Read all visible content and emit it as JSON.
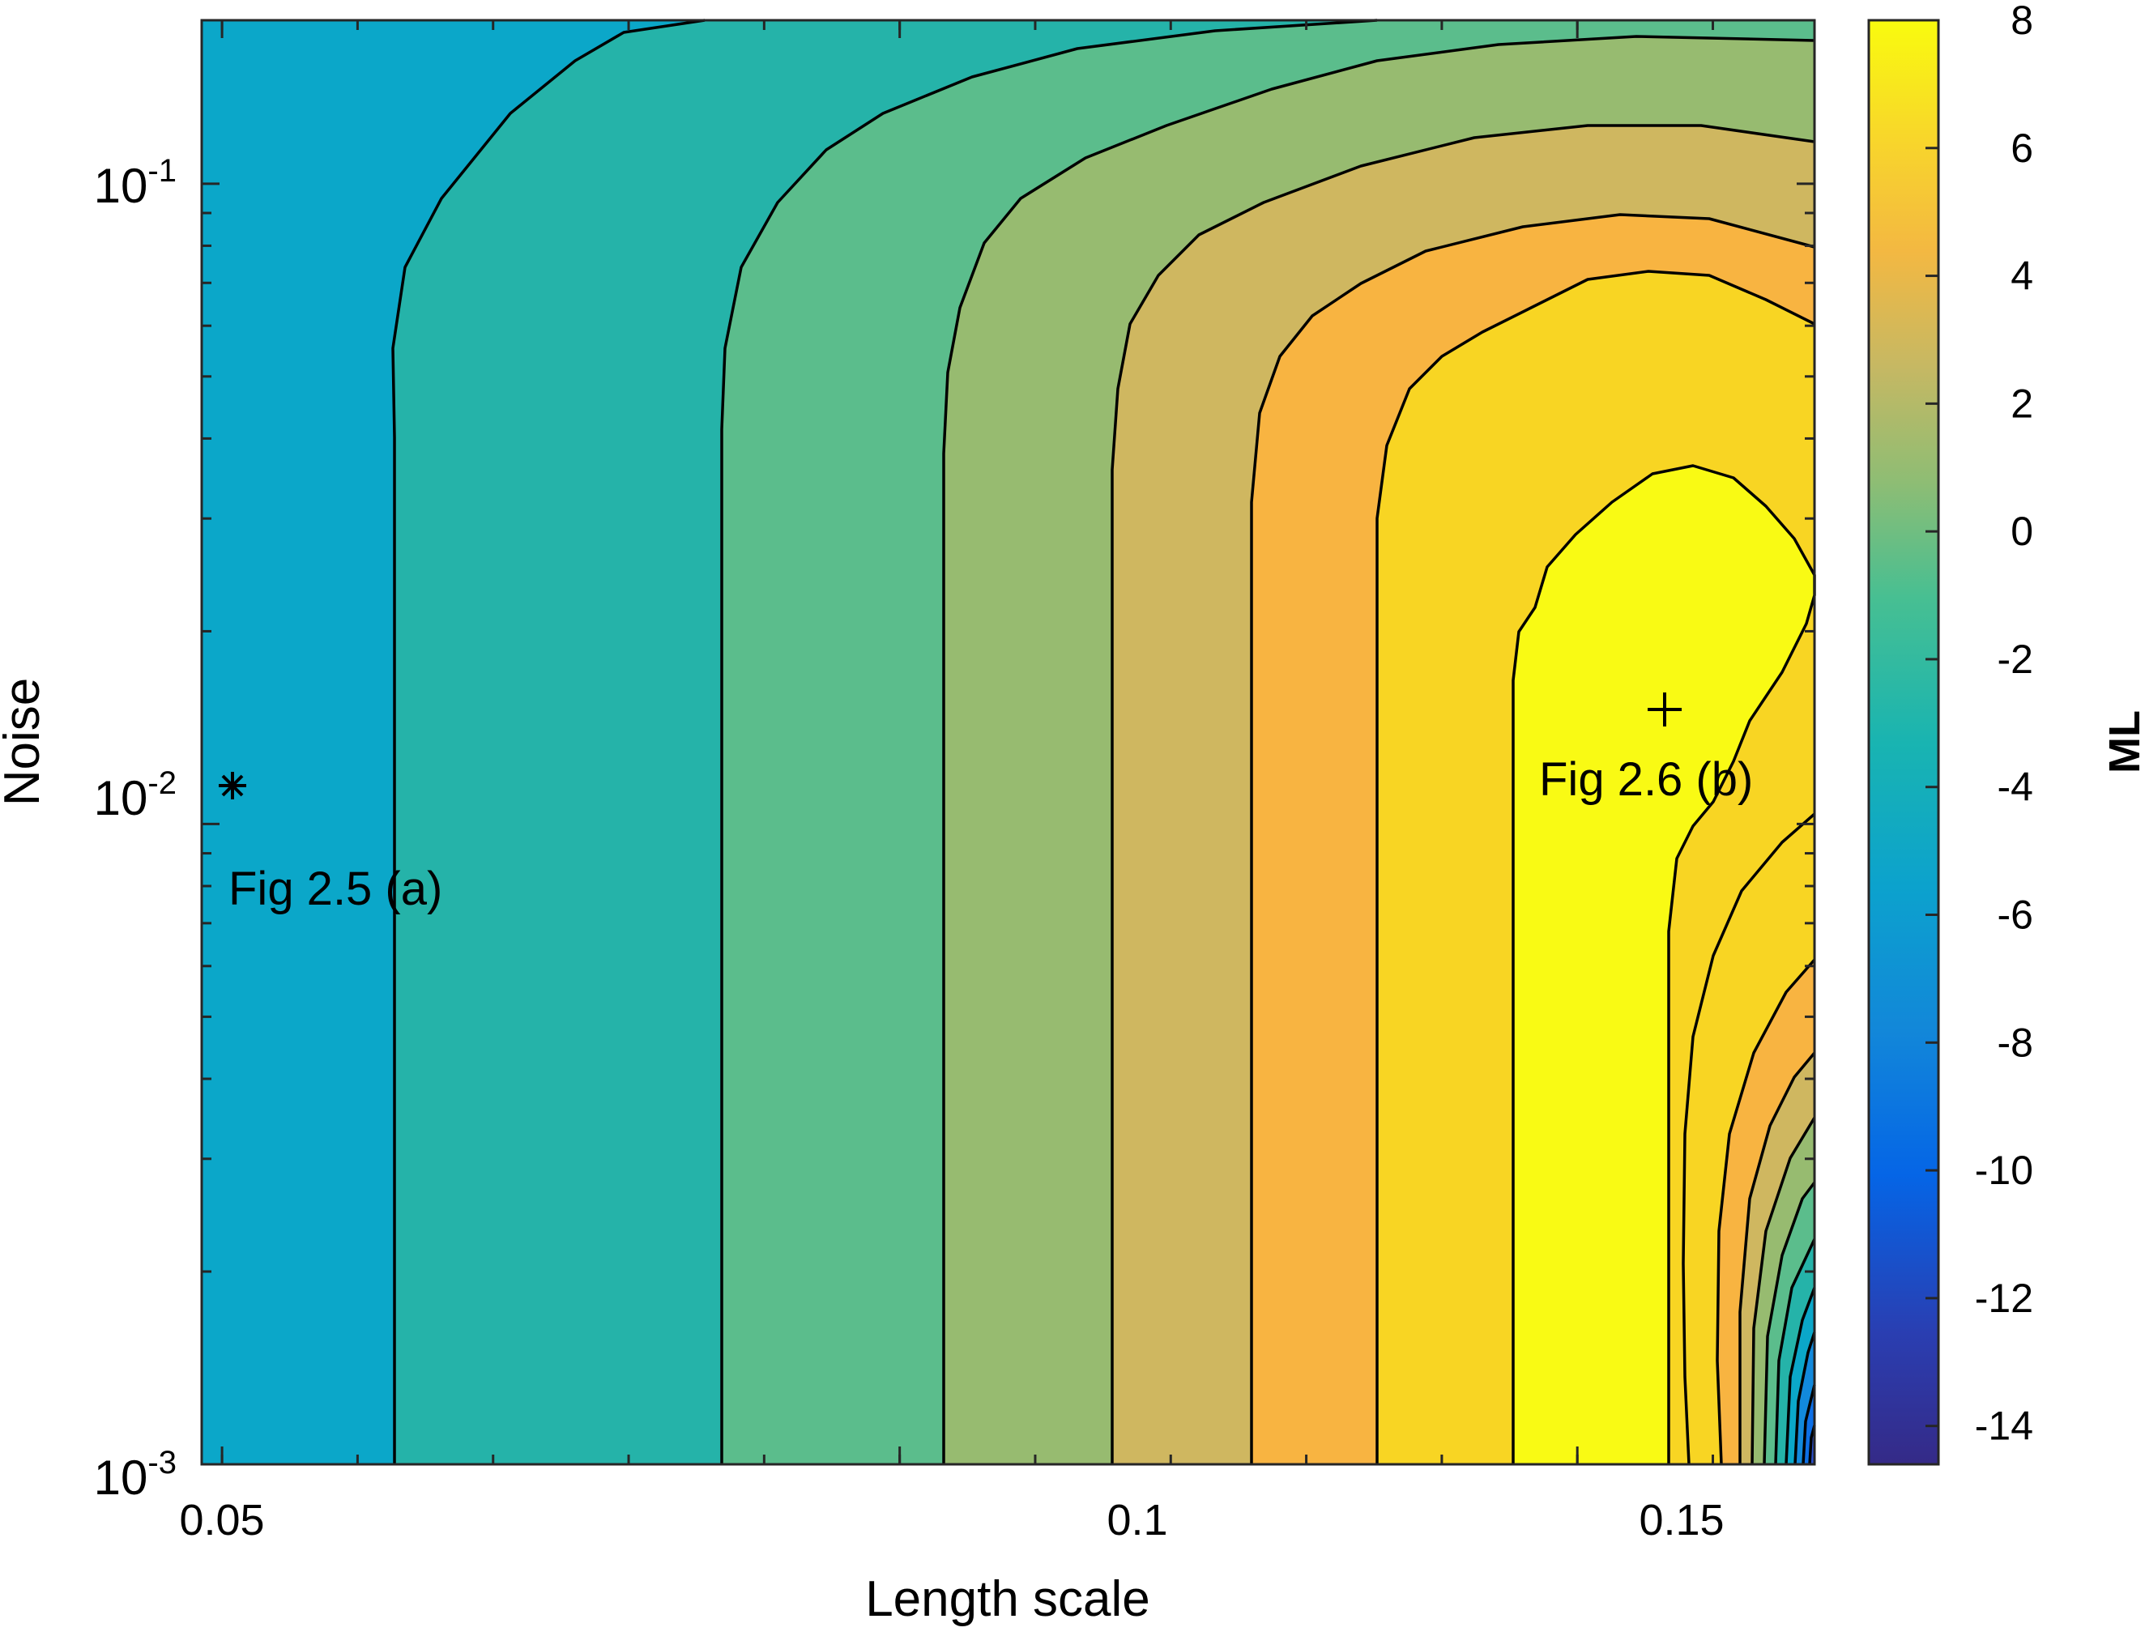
{
  "chart_data": {
    "type": "contour",
    "title": "",
    "xlabel": "Length scale",
    "ylabel": "Noise",
    "xscale": "linear",
    "yscale": "log",
    "xlim": [
      0.0485,
      0.1675
    ],
    "ylim": [
      0.001,
      0.18
    ],
    "x_ticks": [
      {
        "value": 0.05,
        "label": "0.05"
      },
      {
        "value": 0.1,
        "label": "0.1"
      },
      {
        "value": 0.15,
        "label": "0.15"
      }
    ],
    "y_ticks": [
      {
        "value": 0.001,
        "base": "10",
        "exp": "-3"
      },
      {
        "value": 0.01,
        "base": "10",
        "exp": "-2"
      },
      {
        "value": 0.1,
        "base": "10",
        "exp": "-1"
      }
    ],
    "colorbar": {
      "label": "ML",
      "limits": [
        -14.6,
        8
      ],
      "ticks": [
        8,
        6,
        4,
        2,
        0,
        -2,
        -4,
        -6,
        -8,
        -10,
        -12,
        -14
      ],
      "tick_labels": [
        "8",
        "6",
        "4",
        "2",
        "0",
        "-2",
        "-4",
        "-6",
        "-8",
        "-10",
        "-12",
        "-14"
      ]
    },
    "contour_levels": [
      -14,
      -12,
      -10,
      -8,
      -6,
      -4,
      -2,
      0,
      2,
      4,
      6,
      8
    ],
    "colormap": "parula",
    "annotations": [
      {
        "text": "Fig 2.5 (a)",
        "marker": "*",
        "x": 0.05,
        "y": 0.01
      },
      {
        "text": "Fig 2.6 (b)",
        "marker": "+",
        "x": 0.1496,
        "y": 0.015
      }
    ],
    "grid": false
  }
}
